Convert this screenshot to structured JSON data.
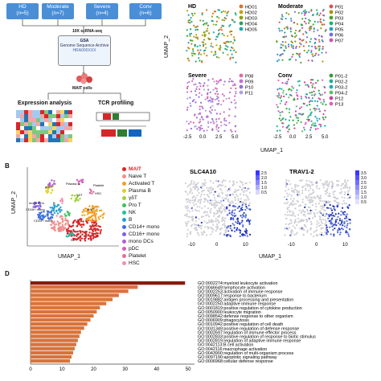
{
  "panelA": {
    "groups": [
      {
        "name": "HD",
        "n": "(n=5)",
        "color": "#4a8fd6"
      },
      {
        "name": "Moderate",
        "n": "(n=7)",
        "color": "#4a8fd6"
      },
      {
        "name": "Severe",
        "n": "(n=4)",
        "color": "#4a8fd6"
      },
      {
        "name": "Conv",
        "n": "(n=6)",
        "color": "#4a8fd6"
      }
    ],
    "seq_label": "10X scRNA-seq",
    "gsa_title": "GSA",
    "gsa_sub": "Genome Sequence Archive",
    "gsa_id": "HRA000XXX",
    "mait_label": "MAIT cells",
    "expression_label": "Expression analysis",
    "tcr_label": "TCR profiling",
    "tcr_segments": [
      "V",
      "J"
    ]
  },
  "umapGroups": {
    "ylabel": "UMAP_2",
    "xlabel": "UMAP_1",
    "xticks": [
      "-2.5",
      "0.0",
      "2.5",
      "5.0"
    ],
    "yticks": [
      "5",
      "0",
      "-5"
    ],
    "panels": [
      {
        "title": "HD",
        "legend": [
          "HD01",
          "HD02",
          "HD03",
          "HD04",
          "HD05"
        ],
        "colors": [
          "#e07020",
          "#c8a000",
          "#88a010",
          "#2ea060",
          "#20a8b0"
        ]
      },
      {
        "title": "Moderate",
        "legend": [
          "P01",
          "P02",
          "P03",
          "P04",
          "P05",
          "P06",
          "P07"
        ],
        "colors": [
          "#e05050",
          "#b09000",
          "#50a030",
          "#20b070",
          "#20a0c0",
          "#7070e0",
          "#d050c0"
        ]
      },
      {
        "title": "Severe",
        "legend": [
          "P08",
          "P09",
          "P10",
          "P11"
        ],
        "colors": [
          "#e06aa0",
          "#c070d0",
          "#9070e0",
          "#b0a0e0"
        ]
      },
      {
        "title": "Conv",
        "legend": [
          "P01-2",
          "P02-2",
          "P03-2",
          "P04-2",
          "P12",
          "P13"
        ],
        "colors": [
          "#30a030",
          "#20b090",
          "#20a8c0",
          "#60c060",
          "#d040a0",
          "#e060c0"
        ]
      }
    ]
  },
  "panelB": {
    "letter": "B",
    "ylabel": "UMAP_2",
    "xlabel": "UMAP_1",
    "xticks": [
      "-10",
      "0",
      "10"
    ],
    "yticks": [
      "10",
      "0",
      "-10"
    ],
    "cluster_legend": [
      {
        "label": "MAIT",
        "color": "#d62728",
        "bold": true
      },
      {
        "label": "Naive T",
        "color": "#f28e8e"
      },
      {
        "label": "Activated T",
        "color": "#f4a020"
      },
      {
        "label": "Plasma B",
        "color": "#e0d020"
      },
      {
        "label": "γδT",
        "color": "#a0d040"
      },
      {
        "label": "Pro T",
        "color": "#40c060"
      },
      {
        "label": "NK",
        "color": "#20c0a0"
      },
      {
        "label": "B",
        "color": "#20a0d0"
      },
      {
        "label": "CD14+ mono",
        "color": "#4070e0"
      },
      {
        "label": "CD16+ mono",
        "color": "#8060e0"
      },
      {
        "label": "mono DCs",
        "color": "#b060d0"
      },
      {
        "label": "pDC",
        "color": "#d060c0"
      },
      {
        "label": "Platelet",
        "color": "#e070a0"
      },
      {
        "label": "HSC",
        "color": "#f090b0"
      }
    ],
    "cluster_tags": [
      "pDC",
      "Plasma B",
      "mono DCs",
      "CD16+ mono",
      "CD14+ mono",
      "Platelet",
      "HSC",
      "γδT",
      "MAIT",
      "NK",
      "B"
    ],
    "genes": [
      {
        "name": "SLC4A10",
        "scale": [
          "2.5",
          "2.0",
          "1.5",
          "1.0",
          "0.5"
        ]
      },
      {
        "name": "TRAV1-2",
        "scale": [
          "3.5",
          "3.0",
          "2.5",
          "2.0",
          "1.5",
          "1.0",
          "0.5"
        ]
      }
    ]
  },
  "panelD": {
    "letter": "D",
    "chart_data": {
      "type": "bar",
      "categories": [
        "GO:0002274:myeloid leukocyte activation",
        "GO:0046649:lymphocyte activation",
        "GO:0002253:activation of immune response",
        "GO:0009617:response to bacterium",
        "GO:0019882:antigen processing and presentation",
        "GO:0002250:adaptive immune response",
        "GO:0001819:positive regulation of cytokine production",
        "GO:0050900:leukocyte migration",
        "GO:0098542:defense response to other organism",
        "GO:0006909:phagocytosis",
        "GO:0010942:positive regulation of cell death",
        "GO:0031349:positive regulation of defense response",
        "GO:0002697:regulation of immune effector process",
        "GO:0002833:positive regulation of response to biotic stimulus",
        "GO:0002819:regulation of adaptive immune response",
        "GO:0042113:B cell activation",
        "GO:0042116:macrophage activation",
        "GO:0043900:regulation of multi-organism process",
        "GO:0097190:apoptotic signaling pathway",
        "GO:0006968:cellular defense response"
      ],
      "values": [
        49,
        34,
        31,
        28,
        26,
        24,
        22,
        21,
        20,
        19,
        18,
        17,
        16,
        15.5,
        15,
        14.5,
        14,
        13.5,
        13,
        12.5
      ],
      "xticks": [
        "0",
        "10",
        "20",
        "30",
        "40",
        "50"
      ],
      "xlim": [
        0,
        52
      ],
      "bar_colors_top": "#8b1a0e",
      "bar_colors_rest": "#d9733a"
    }
  }
}
